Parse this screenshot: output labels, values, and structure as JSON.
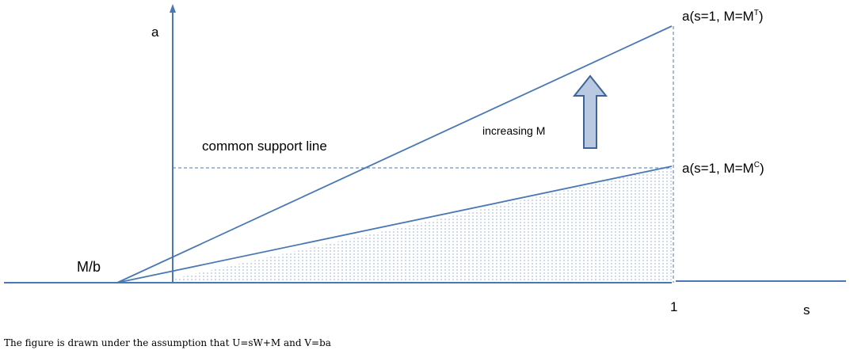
{
  "labels": {
    "y_axis": "a",
    "x_axis": "s",
    "x_tick_one": "1",
    "intercept": "M/b",
    "support_line": "common support line",
    "arrow_label": "increasing M",
    "top_point": {
      "prefix": "a(s=1, M=M",
      "sup": "T",
      "suffix": ")"
    },
    "bottom_point": {
      "prefix": "a(s=1, M=M",
      "sup": "C",
      "suffix": ")"
    }
  },
  "caption": "The figure is drawn under the assumption that U=sW+M and V=ba",
  "colors": {
    "line": "#4a78b5",
    "arrow_fill": "#b9c9e2",
    "arrow_stroke": "#3e6496",
    "hatch": "#9fb6d8"
  }
}
